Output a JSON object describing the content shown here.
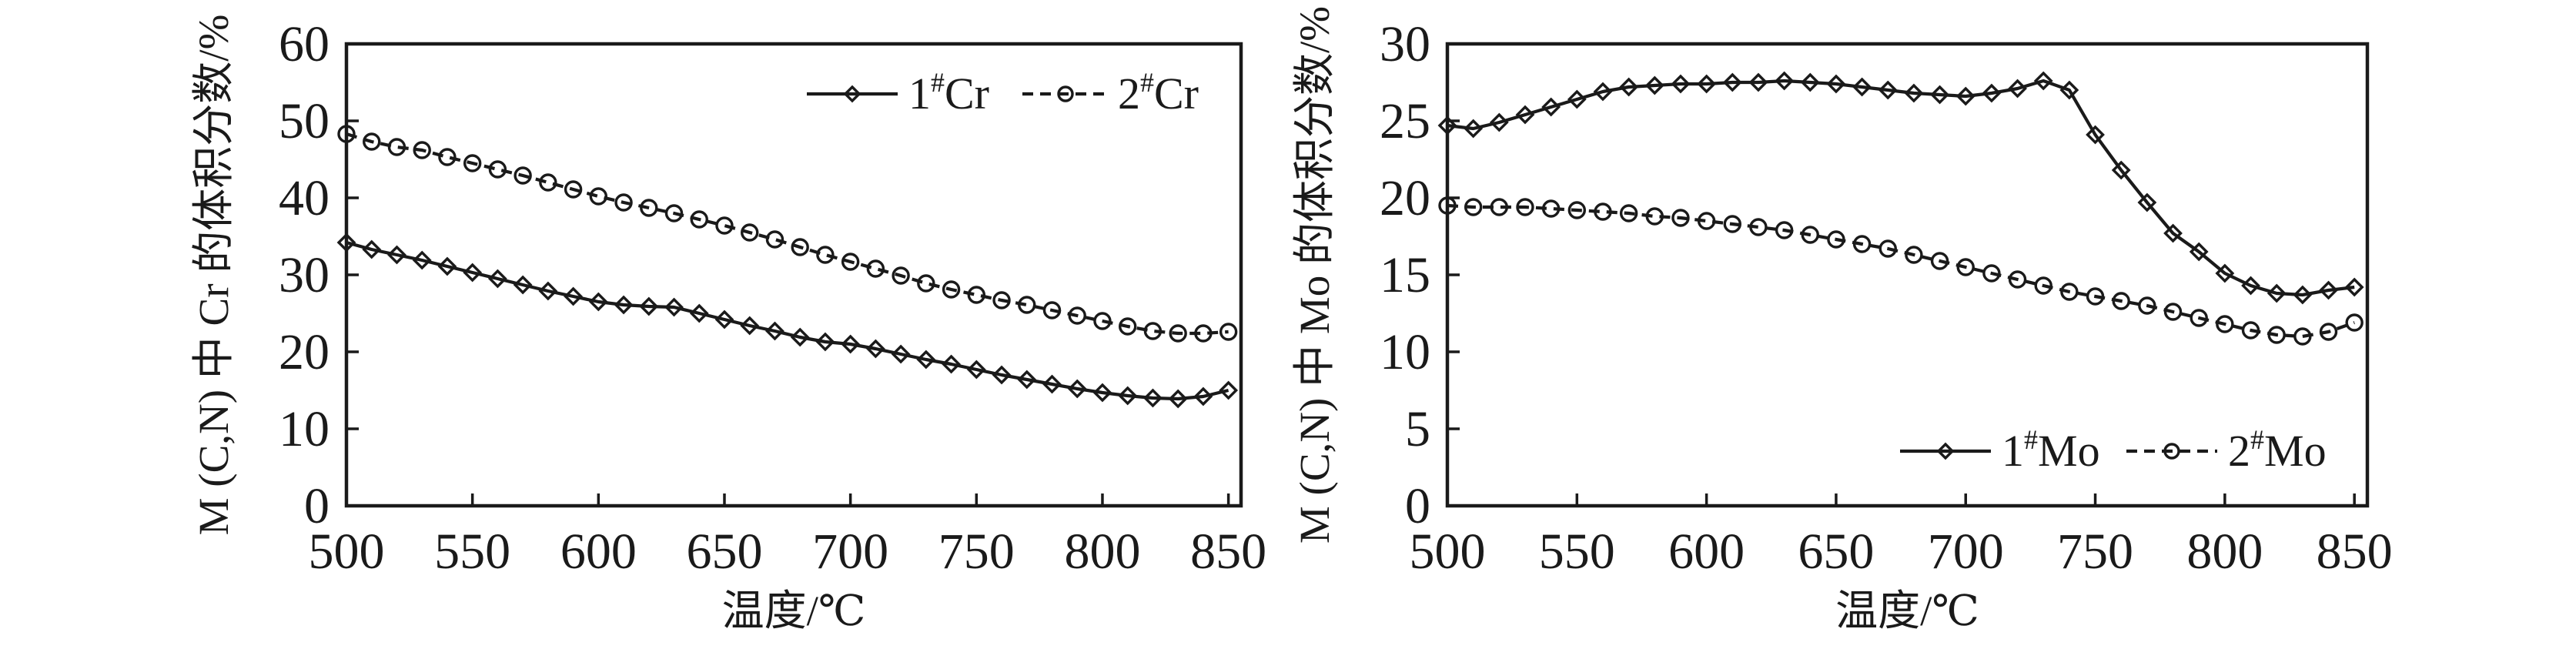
{
  "figure": {
    "background": "#ffffff",
    "ink": "#1a1a1a"
  },
  "charts": [
    {
      "id": "cr-chart",
      "chart_data": {
        "type": "line",
        "title": "",
        "xlabel": "温度/℃",
        "ylabel": "M (C,N) 中 Cr 的体积分数/%",
        "xlim": [
          500,
          855
        ],
        "ylim": [
          0,
          60
        ],
        "x_ticks": [
          500,
          550,
          600,
          650,
          700,
          750,
          800,
          850
        ],
        "y_ticks": [
          0,
          10,
          20,
          30,
          40,
          50,
          60
        ],
        "grid": false,
        "legend_position": "inside-top-right",
        "x": [
          500,
          510,
          520,
          530,
          540,
          550,
          560,
          570,
          580,
          590,
          600,
          610,
          620,
          630,
          640,
          650,
          660,
          670,
          680,
          690,
          700,
          710,
          720,
          730,
          740,
          750,
          760,
          770,
          780,
          790,
          800,
          810,
          820,
          830,
          840,
          850
        ],
        "series": [
          {
            "name": "1#Cr",
            "label": {
              "num": "1",
              "sup": "#",
              "element": "Cr"
            },
            "line": "solid",
            "marker": "diamond",
            "values": [
              34.2,
              33.3,
              32.6,
              31.9,
              31.1,
              30.3,
              29.5,
              28.7,
              27.9,
              27.2,
              26.5,
              26.1,
              25.9,
              25.8,
              25.0,
              24.2,
              23.4,
              22.7,
              21.9,
              21.3,
              21.0,
              20.4,
              19.7,
              19.0,
              18.4,
              17.7,
              17.0,
              16.4,
              15.8,
              15.2,
              14.7,
              14.3,
              14.0,
              13.9,
              14.2,
              15.0
            ]
          },
          {
            "name": "2#Cr",
            "label": {
              "num": "2",
              "sup": "#",
              "element": "Cr"
            },
            "line": "dashed",
            "marker": "circle",
            "values": [
              48.3,
              47.3,
              46.6,
              46.2,
              45.3,
              44.5,
              43.7,
              42.9,
              42.0,
              41.1,
              40.2,
              39.4,
              38.7,
              38.0,
              37.2,
              36.4,
              35.5,
              34.6,
              33.6,
              32.6,
              31.7,
              30.8,
              29.9,
              28.9,
              28.1,
              27.4,
              26.7,
              26.1,
              25.4,
              24.7,
              24.0,
              23.3,
              22.7,
              22.4,
              22.4,
              22.6
            ]
          }
        ]
      }
    },
    {
      "id": "mo-chart",
      "chart_data": {
        "type": "line",
        "title": "",
        "xlabel": "温度/℃",
        "ylabel": "M (C,N) 中 Mo 的体积分数/%",
        "xlim": [
          500,
          855
        ],
        "ylim": [
          0,
          30
        ],
        "x_ticks": [
          500,
          550,
          600,
          650,
          700,
          750,
          800,
          850
        ],
        "y_ticks": [
          0,
          5,
          10,
          15,
          20,
          25,
          30
        ],
        "grid": false,
        "legend_position": "inside-bottom-right",
        "x": [
          500,
          510,
          520,
          530,
          540,
          550,
          560,
          570,
          580,
          590,
          600,
          610,
          620,
          630,
          640,
          650,
          660,
          670,
          680,
          690,
          700,
          710,
          720,
          730,
          740,
          750,
          760,
          770,
          780,
          790,
          800,
          810,
          820,
          830,
          840,
          850
        ],
        "series": [
          {
            "name": "1#Mo",
            "label": {
              "num": "1",
              "sup": "#",
              "element": "Mo"
            },
            "line": "solid",
            "marker": "diamond",
            "values": [
              24.7,
              24.5,
              24.9,
              25.4,
              25.9,
              26.4,
              26.9,
              27.2,
              27.3,
              27.4,
              27.4,
              27.5,
              27.5,
              27.6,
              27.5,
              27.4,
              27.2,
              27.0,
              26.8,
              26.7,
              26.6,
              26.8,
              27.1,
              27.6,
              27.0,
              24.1,
              21.8,
              19.7,
              17.7,
              16.5,
              15.1,
              14.3,
              13.8,
              13.7,
              14.0,
              14.2
            ]
          },
          {
            "name": "2#Mo",
            "label": {
              "num": "2",
              "sup": "#",
              "element": "Mo"
            },
            "line": "dashed",
            "marker": "circle",
            "values": [
              19.5,
              19.4,
              19.4,
              19.4,
              19.3,
              19.2,
              19.1,
              19.0,
              18.8,
              18.7,
              18.5,
              18.3,
              18.1,
              17.9,
              17.6,
              17.3,
              17.0,
              16.7,
              16.3,
              15.9,
              15.5,
              15.1,
              14.7,
              14.3,
              13.9,
              13.6,
              13.3,
              13.0,
              12.6,
              12.2,
              11.8,
              11.4,
              11.1,
              11.0,
              11.3,
              11.9
            ]
          }
        ]
      }
    }
  ]
}
